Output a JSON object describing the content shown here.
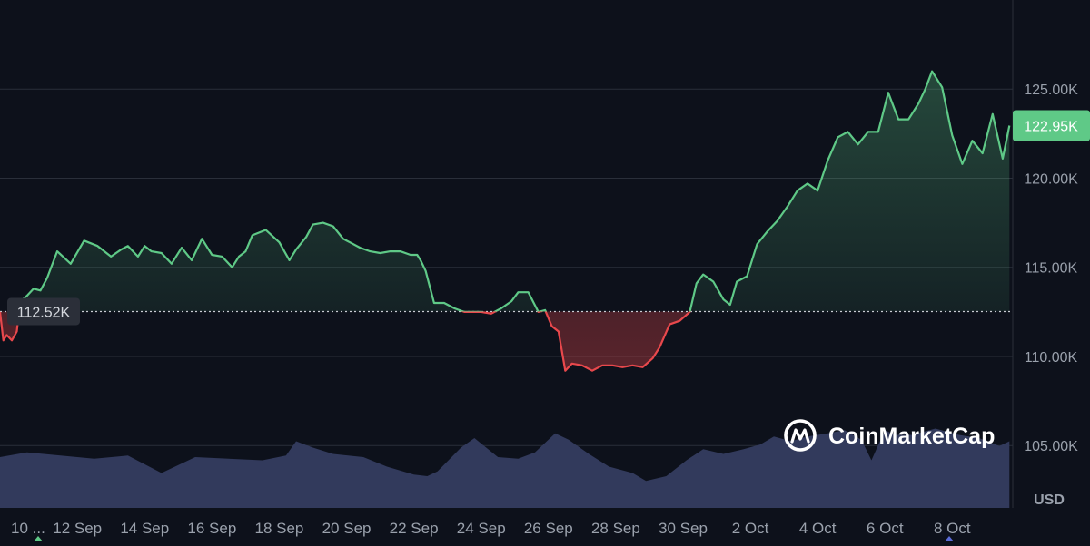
{
  "chart_data": {
    "type": "area",
    "currency": "USD",
    "y_axis_ticks": [
      "125.00K",
      "120.00K",
      "115.00K",
      "110.00K",
      "105.00K"
    ],
    "y_tick_values": [
      125000,
      120000,
      115000,
      110000,
      105000
    ],
    "ylim": [
      101500,
      130000
    ],
    "x_tick_labels": [
      "10 ...",
      "12 Sep",
      "14 Sep",
      "16 Sep",
      "18 Sep",
      "20 Sep",
      "22 Sep",
      "24 Sep",
      "26 Sep",
      "28 Sep",
      "30 Sep",
      "2 Oct",
      "4 Oct",
      "6 Oct",
      "8 Oct"
    ],
    "x_tick_day_offsets": [
      0,
      2,
      4,
      6,
      8,
      10,
      12,
      14,
      16,
      18,
      20,
      22,
      24,
      26,
      28
    ],
    "x_range_days": [
      -0.3,
      29.8
    ],
    "baseline": {
      "value": 112520,
      "label": "112.52K"
    },
    "current": {
      "value": 122950,
      "label": "122.95K"
    },
    "colors": {
      "up": "#5fc987",
      "down": "#e8484c",
      "volume": "#323a5c",
      "background": "#0d111b",
      "grid": "#2a2f3a"
    },
    "price_series": {
      "x_days": [
        -0.3,
        -0.2,
        -0.1,
        0.05,
        0.2,
        0.3,
        0.5,
        0.7,
        0.9,
        1.1,
        1.4,
        1.8,
        2.2,
        2.6,
        3.0,
        3.3,
        3.5,
        3.8,
        4.0,
        4.2,
        4.5,
        4.8,
        5.1,
        5.4,
        5.7,
        6.0,
        6.3,
        6.6,
        6.8,
        7.0,
        7.2,
        7.6,
        8.0,
        8.3,
        8.5,
        8.8,
        9.0,
        9.3,
        9.6,
        9.9,
        10.1,
        10.4,
        10.7,
        11.0,
        11.3,
        11.6,
        11.9,
        12.1,
        12.2,
        12.35,
        12.6,
        12.9,
        13.2,
        13.5,
        13.8,
        14.0,
        14.3,
        14.6,
        14.9,
        15.1,
        15.4,
        15.7,
        15.9,
        16.1,
        16.3,
        16.5,
        16.7,
        17.0,
        17.3,
        17.6,
        17.9,
        18.2,
        18.5,
        18.8,
        19.1,
        19.3,
        19.6,
        19.9,
        20.2,
        20.4,
        20.6,
        20.9,
        21.2,
        21.4,
        21.6,
        21.9,
        22.2,
        22.5,
        22.8,
        23.1,
        23.4,
        23.7,
        24.0,
        24.3,
        24.6,
        24.9,
        25.2,
        25.5,
        25.8,
        26.1,
        26.4,
        26.7,
        27.0,
        27.2,
        27.4,
        27.7,
        28.0,
        28.3,
        28.6,
        28.9,
        29.2,
        29.5,
        29.7
      ],
      "values": [
        112.5,
        110.9,
        111.2,
        110.9,
        111.4,
        113.1,
        113.4,
        113.8,
        113.7,
        114.4,
        115.9,
        115.2,
        116.5,
        116.2,
        115.6,
        116.0,
        116.2,
        115.6,
        116.2,
        115.9,
        115.8,
        115.2,
        116.1,
        115.4,
        116.6,
        115.7,
        115.6,
        115.0,
        115.6,
        115.9,
        116.8,
        117.1,
        116.4,
        115.4,
        116.0,
        116.7,
        117.4,
        117.5,
        117.3,
        116.6,
        116.4,
        116.1,
        115.9,
        115.8,
        115.9,
        115.9,
        115.7,
        115.7,
        115.4,
        114.8,
        113.0,
        113.0,
        112.7,
        112.5,
        112.5,
        112.5,
        112.4,
        112.7,
        113.1,
        113.6,
        113.6,
        112.5,
        112.6,
        111.7,
        111.4,
        109.2,
        109.6,
        109.5,
        109.2,
        109.5,
        109.5,
        109.4,
        109.5,
        109.4,
        109.9,
        110.5,
        111.8,
        112.0,
        112.5,
        114.1,
        114.6,
        114.2,
        113.2,
        112.9,
        114.2,
        114.5,
        116.3,
        117.0,
        117.6,
        118.4,
        119.3,
        119.7,
        119.3,
        121.0,
        122.3,
        122.6,
        121.9,
        122.6,
        122.6,
        124.8,
        123.3,
        123.3,
        124.2,
        125.0,
        126.0,
        125.1,
        122.4,
        120.8,
        122.1,
        121.4,
        123.6,
        121.1,
        122.95
      ]
    },
    "volume_series": {
      "x_days": [
        -0.3,
        0.5,
        1.5,
        2.5,
        3.5,
        4.5,
        5.5,
        6.5,
        7.5,
        8.2,
        8.5,
        9.0,
        9.6,
        10.5,
        11.2,
        12.0,
        12.4,
        12.7,
        13.4,
        13.8,
        14.5,
        15.1,
        15.6,
        16.2,
        16.6,
        17.2,
        17.8,
        18.5,
        18.9,
        19.5,
        20.1,
        20.6,
        21.2,
        21.8,
        22.3,
        22.7,
        23.2,
        23.7,
        24.3,
        24.8,
        25.3,
        25.6,
        26.0,
        26.3,
        26.8,
        27.5,
        28.2,
        28.8,
        29.4,
        29.7
      ],
      "values": [
        3.2,
        3.5,
        3.3,
        3.1,
        3.3,
        2.2,
        3.2,
        3.1,
        3.0,
        3.3,
        4.2,
        3.8,
        3.4,
        3.2,
        2.6,
        2.1,
        2.0,
        2.3,
        3.8,
        4.4,
        3.2,
        3.1,
        3.5,
        4.7,
        4.3,
        3.4,
        2.6,
        2.2,
        1.7,
        2.0,
        3.0,
        3.7,
        3.4,
        3.7,
        4.0,
        4.5,
        4.2,
        4.5,
        4.7,
        4.9,
        4.3,
        3.0,
        4.9,
        4.6,
        4.6,
        5.0,
        4.6,
        4.4,
        3.9,
        4.2
      ]
    }
  },
  "branding": {
    "name": "CoinMarketCap"
  }
}
